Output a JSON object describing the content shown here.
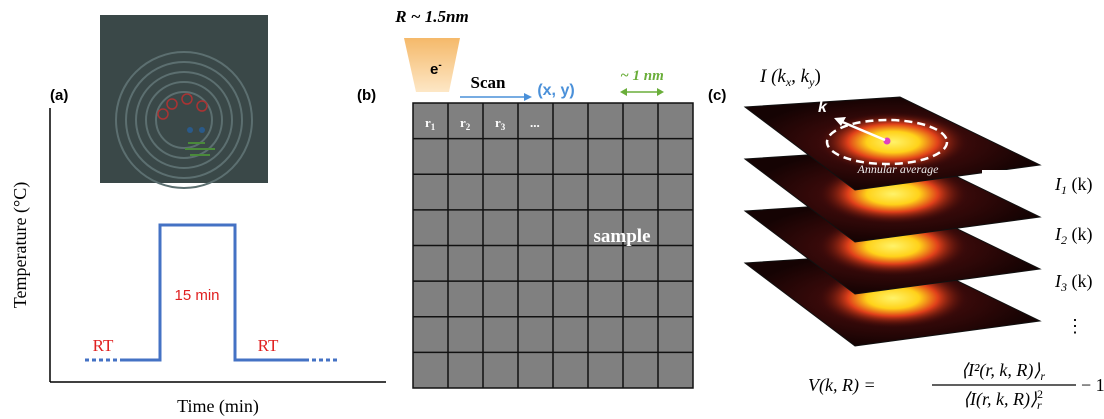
{
  "panel_a": {
    "label": "(a)",
    "y_axis_label": "Temperature (°C)",
    "x_axis_label": "Time (min)",
    "baseline_left": "RT",
    "hold_label": "15 min",
    "baseline_right": "RT"
  },
  "panel_b": {
    "label": "(b)",
    "beam_size": "R ~ 1.5nm",
    "beam_label": "e",
    "beam_label_sup": "-",
    "scan": "Scan",
    "scan_coords": "(x, y)",
    "pixel_size": "~ 1 nm",
    "grid_labels": [
      {
        "main": "r",
        "sub": "1"
      },
      {
        "main": "r",
        "sub": "2"
      },
      {
        "main": "r",
        "sub": "3"
      }
    ],
    "grid_ellipsis": "...",
    "sample_label": "sample"
  },
  "panel_c": {
    "label": "(c)",
    "pattern_label": {
      "parts": [
        "I (k",
        ", k",
        ")"
      ],
      "subs": [
        "x",
        "y"
      ]
    },
    "vector_label": "k",
    "annular_label": "Annular average",
    "layer_labels": [
      {
        "main": "I",
        "sub": "1",
        "rest": " (k)"
      },
      {
        "main": "I",
        "sub": "2",
        "rest": " (k)"
      },
      {
        "main": "I",
        "sub": "3",
        "rest": " (k)"
      }
    ],
    "continuation": "⋮",
    "formula": {
      "lhs": "V(k, R) =",
      "numerator": "⟨I²(r,  k,  R)⟩",
      "numerator_sub": "r",
      "denominator": "⟨I(r,  k,  R)⟩",
      "denominator_sup": "2",
      "denominator_sub": "r",
      "rhs": "− 1"
    }
  }
}
